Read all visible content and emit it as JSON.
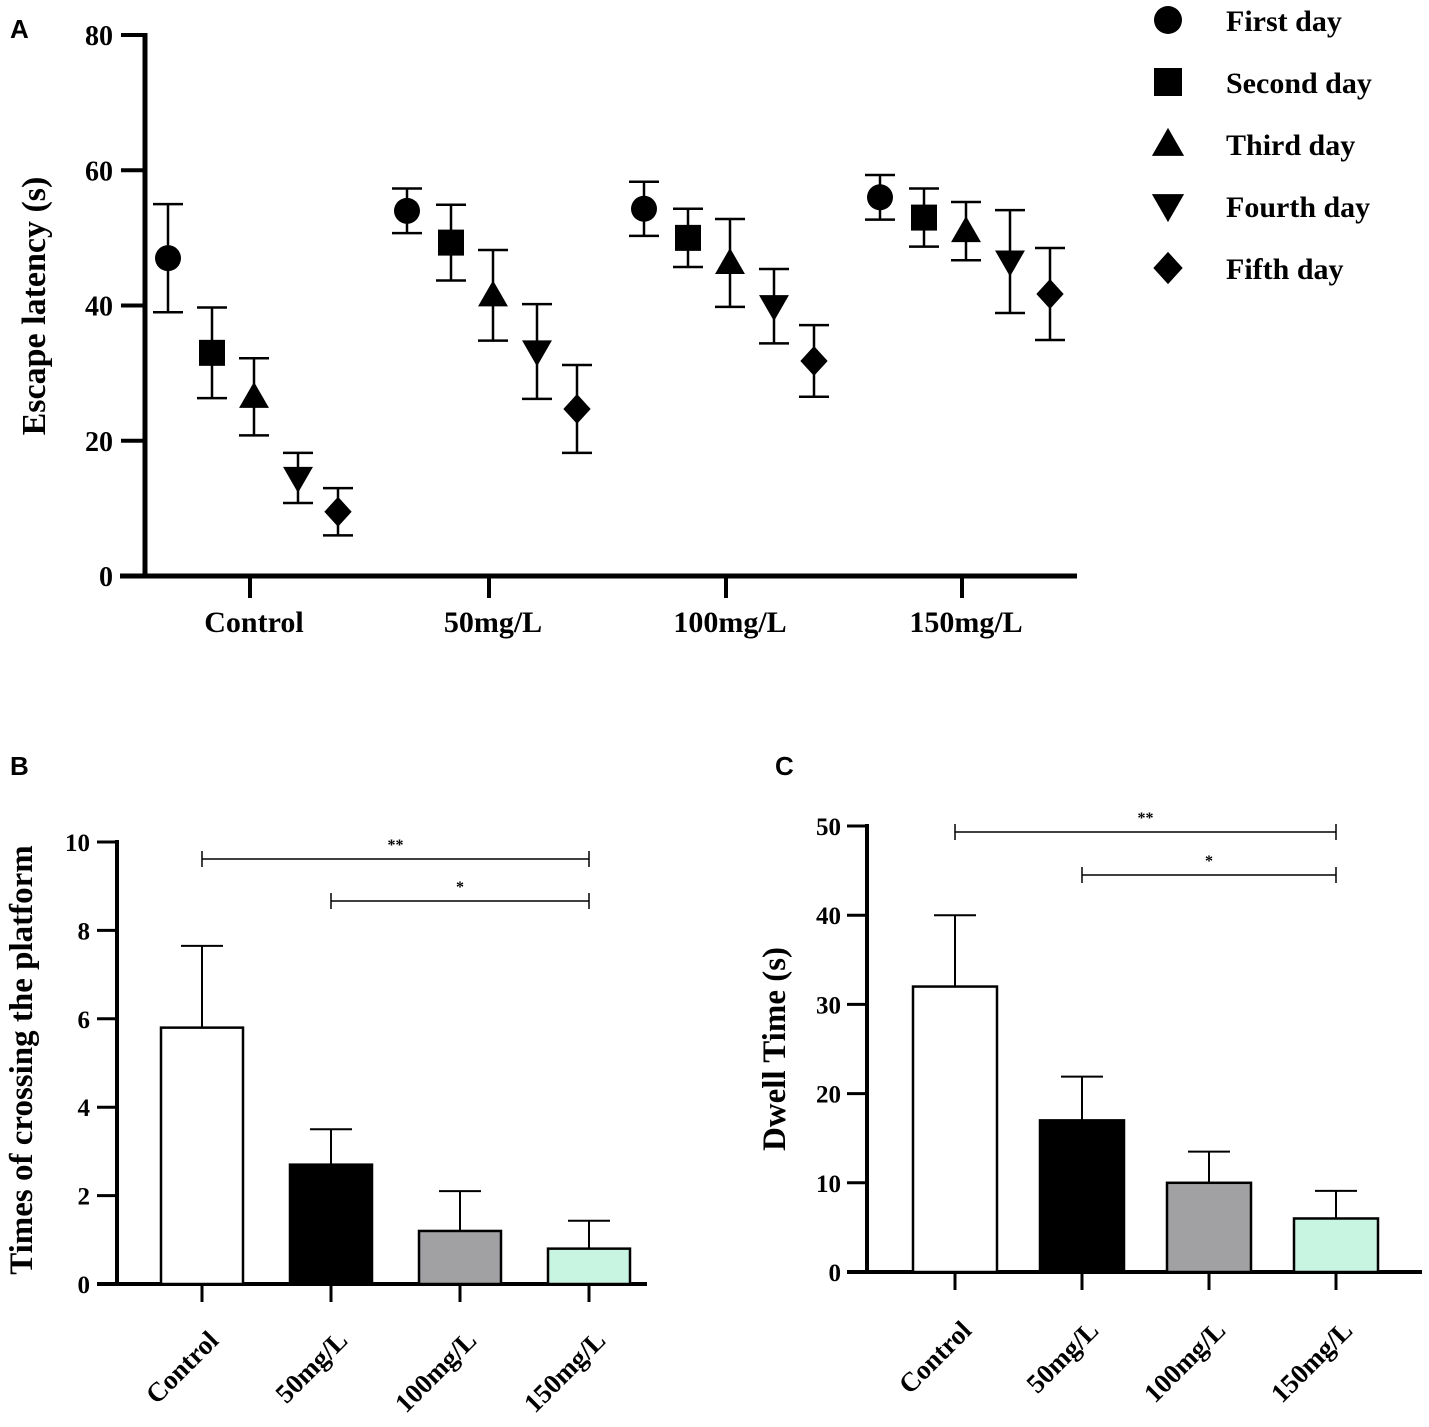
{
  "chart_data": [
    {
      "panel": "A",
      "type": "scatter",
      "ylabel": "Escape latency (s)",
      "xlabel": "",
      "ylim": [
        0,
        80
      ],
      "yticks": [
        0,
        20,
        40,
        60,
        80
      ],
      "categories": [
        "Control",
        "50mg/L",
        "100mg/L",
        "150mg/L"
      ],
      "legend_position": "top-right",
      "series": [
        {
          "name": "First day",
          "marker": "circle",
          "values": [
            47,
            54,
            54.3,
            56
          ],
          "err": [
            8,
            3.3,
            4,
            3.3
          ]
        },
        {
          "name": "Second day",
          "marker": "square",
          "values": [
            33,
            49.3,
            50,
            53
          ],
          "err": [
            6.7,
            5.6,
            4.3,
            4.3
          ]
        },
        {
          "name": "Third day",
          "marker": "triangle-up",
          "values": [
            26.5,
            41.5,
            46.3,
            51
          ],
          "err": [
            5.7,
            6.7,
            6.5,
            4.3
          ]
        },
        {
          "name": "Fourth day",
          "marker": "triangle-down",
          "values": [
            14.5,
            33.2,
            39.9,
            46.5
          ],
          "err": [
            3.7,
            7,
            5.5,
            7.6
          ]
        },
        {
          "name": "Fifth day",
          "marker": "diamond",
          "values": [
            9.5,
            24.7,
            31.8,
            41.7
          ],
          "err": [
            3.5,
            6.5,
            5.3,
            6.8
          ]
        }
      ]
    },
    {
      "panel": "B",
      "type": "bar",
      "ylabel": "Times of crossing the platform",
      "xlabel": "",
      "ylim": [
        0,
        10
      ],
      "yticks": [
        0,
        2,
        4,
        6,
        8,
        10
      ],
      "categories": [
        "Control",
        "50mg/L",
        "100mg/L",
        "150mg/L"
      ],
      "values": [
        5.8,
        2.7,
        1.2,
        0.8
      ],
      "err": [
        1.85,
        0.8,
        0.9,
        0.63
      ],
      "colors": [
        "#ffffff",
        "#000000",
        "#a1a1a4",
        "#c8f5e2"
      ],
      "significance": [
        {
          "from": 0,
          "to": 3,
          "label": "**"
        },
        {
          "from": 1,
          "to": 3,
          "label": "*"
        }
      ]
    },
    {
      "panel": "C",
      "type": "bar",
      "ylabel": "Dwell Time (s)",
      "xlabel": "",
      "ylim": [
        0,
        50
      ],
      "yticks": [
        0,
        10,
        20,
        30,
        40,
        50
      ],
      "categories": [
        "Control",
        "50mg/L",
        "100mg/L",
        "150mg/L"
      ],
      "values": [
        32,
        17,
        10,
        6
      ],
      "err": [
        8,
        4.9,
        3.5,
        3.1
      ],
      "colors": [
        "#ffffff",
        "#000000",
        "#a1a1a4",
        "#c8f5e2"
      ],
      "significance": [
        {
          "from": 0,
          "to": 3,
          "label": "**"
        },
        {
          "from": 1,
          "to": 3,
          "label": "*"
        }
      ]
    }
  ]
}
